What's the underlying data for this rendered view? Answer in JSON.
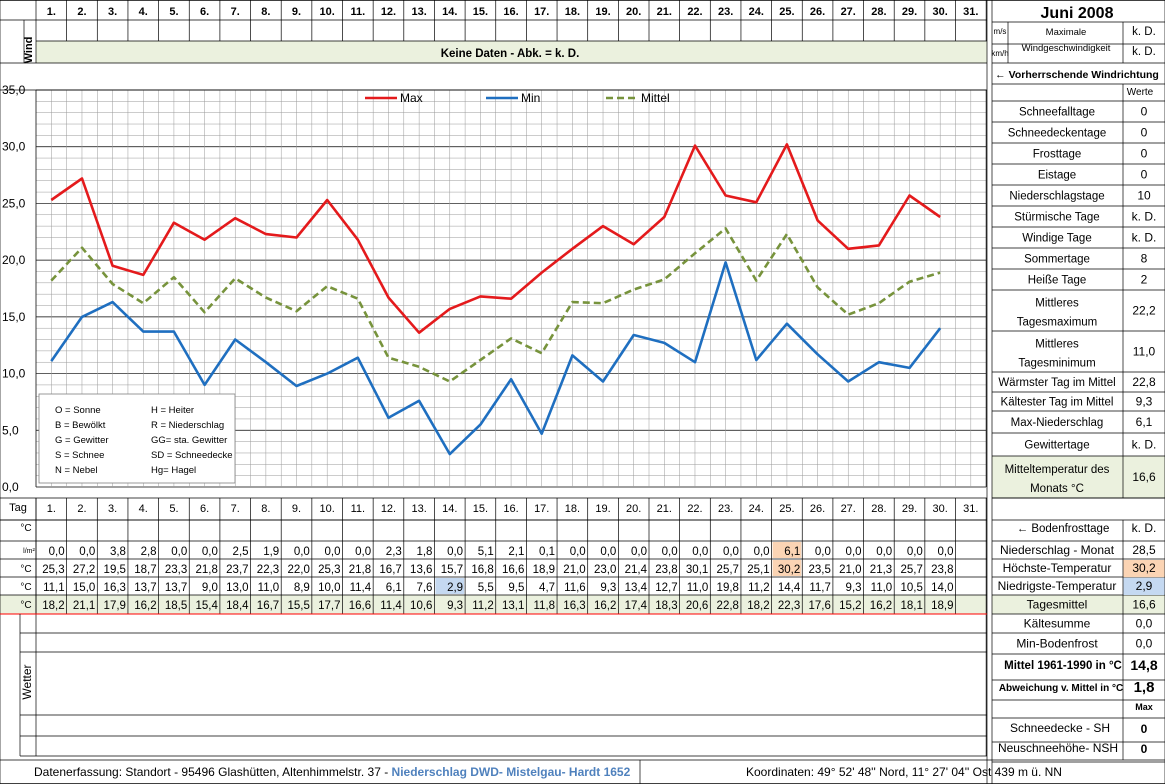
{
  "header": {
    "title": "Juni 2008",
    "day_labels": [
      "1.",
      "2.",
      "3.",
      "4.",
      "5.",
      "6.",
      "7.",
      "8.",
      "9.",
      "10.",
      "11.",
      "12.",
      "13.",
      "14.",
      "15.",
      "16.",
      "17.",
      "18.",
      "19.",
      "20.",
      "21.",
      "22.",
      "23.",
      "24.",
      "25.",
      "26.",
      "27.",
      "28.",
      "29.",
      "30.",
      "31."
    ]
  },
  "wind": {
    "label": "Wind",
    "no_data_text": "Keine Daten - Abk. = k. D.",
    "unit_ms": "m/s",
    "unit_kmh": "km/h",
    "max_label_line1": "Maximale",
    "max_label_line2": "Windgeschwindigkeit",
    "value_ms": "k. D.",
    "value_kmh": "k. D.",
    "direction_label": "← Vorherrschende Windrichtung"
  },
  "chart_data": {
    "type": "line",
    "title": "",
    "xlabel": "",
    "ylabel": "",
    "x": [
      1,
      2,
      3,
      4,
      5,
      6,
      7,
      8,
      9,
      10,
      11,
      12,
      13,
      14,
      15,
      16,
      17,
      18,
      19,
      20,
      21,
      22,
      23,
      24,
      25,
      26,
      27,
      28,
      29,
      30
    ],
    "ylim": [
      0,
      35
    ],
    "yticks": [
      "0,0",
      "5,0",
      "10,0",
      "15,0",
      "20,0",
      "25,0",
      "30,0",
      "35,0"
    ],
    "grid": true,
    "legend_position": "top",
    "series": [
      {
        "name": "Max",
        "color": "#e41a1c",
        "style": "solid",
        "values": [
          25.3,
          27.2,
          19.5,
          18.7,
          23.3,
          21.8,
          23.7,
          22.3,
          22.0,
          25.3,
          21.8,
          16.7,
          13.6,
          15.7,
          16.8,
          16.6,
          18.9,
          21.0,
          23.0,
          21.4,
          23.8,
          30.1,
          25.7,
          25.1,
          30.2,
          23.5,
          21.0,
          21.3,
          25.7,
          23.8
        ]
      },
      {
        "name": "Min",
        "color": "#1f6fc0",
        "style": "solid",
        "values": [
          11.1,
          15.0,
          16.3,
          13.7,
          13.7,
          9.0,
          13.0,
          11.0,
          8.9,
          10.0,
          11.4,
          6.1,
          7.6,
          2.9,
          5.5,
          9.5,
          4.7,
          11.6,
          9.3,
          13.4,
          12.7,
          11.0,
          19.8,
          11.2,
          14.4,
          11.7,
          9.3,
          11.0,
          10.5,
          14.0
        ]
      },
      {
        "name": "Mittel",
        "color": "#77933c",
        "style": "dashed",
        "values": [
          18.2,
          21.1,
          17.9,
          16.2,
          18.5,
          15.4,
          18.4,
          16.7,
          15.5,
          17.7,
          16.6,
          11.4,
          10.6,
          9.3,
          11.2,
          13.1,
          11.8,
          16.3,
          16.2,
          17.4,
          18.3,
          20.6,
          22.8,
          18.2,
          22.3,
          17.6,
          15.2,
          16.2,
          18.1,
          18.9
        ]
      }
    ],
    "annotation_legend": [
      [
        "O = Sonne",
        "H = Heiter"
      ],
      [
        "B = Bewölkt",
        "R = Niederschlag"
      ],
      [
        "G = Gewitter",
        "GG= sta. Gewitter"
      ],
      [
        "S = Schnee",
        "SD = Schneedecke"
      ],
      [
        "N = Nebel",
        "Hg= Hagel"
      ]
    ]
  },
  "stats": {
    "header": "Werte",
    "rows": [
      {
        "label": "Schneefalltage",
        "value": "0"
      },
      {
        "label": "Schneedeckentage",
        "value": "0"
      },
      {
        "label": "Frosttage",
        "value": "0"
      },
      {
        "label": "Eistage",
        "value": "0"
      },
      {
        "label": "Niederschlagstage",
        "value": "10"
      },
      {
        "label": "Stürmische Tage",
        "value": "k. D."
      },
      {
        "label": "Windige Tage",
        "value": "k. D."
      },
      {
        "label": "Sommertage",
        "value": "8"
      },
      {
        "label": "Heiße Tage",
        "value": "2"
      },
      {
        "label": "Mittleres Tagesmaximum",
        "value": "22,2"
      },
      {
        "label": "Mittleres Tagesminimum",
        "value": "11,0"
      },
      {
        "label": "Wärmster Tag im Mittel",
        "value": "22,8"
      },
      {
        "label": "Kältester Tag im Mittel",
        "value": "9,3"
      },
      {
        "label": "Max-Niederschlag",
        "value": "6,1"
      },
      {
        "label": "Gewittertage",
        "value": "k. D."
      },
      {
        "label": "Mitteltemperatur des Monats °C",
        "value": "16,6"
      }
    ]
  },
  "table": {
    "tag_label": "Tag",
    "unit_c": "°C",
    "unit_rain": "l/m²",
    "rain": [
      "0,0",
      "0,0",
      "3,8",
      "2,8",
      "0,0",
      "0,0",
      "2,5",
      "1,9",
      "0,0",
      "0,0",
      "0,0",
      "2,3",
      "1,8",
      "0,0",
      "5,1",
      "2,1",
      "0,1",
      "0,0",
      "0,0",
      "0,0",
      "0,0",
      "0,0",
      "0,0",
      "0,0",
      "6,1",
      "0,0",
      "0,0",
      "0,0",
      "0,0",
      "0,0"
    ],
    "max": [
      "25,3",
      "27,2",
      "19,5",
      "18,7",
      "23,3",
      "21,8",
      "23,7",
      "22,3",
      "22,0",
      "25,3",
      "21,8",
      "16,7",
      "13,6",
      "15,7",
      "16,8",
      "16,6",
      "18,9",
      "21,0",
      "23,0",
      "21,4",
      "23,8",
      "30,1",
      "25,7",
      "25,1",
      "30,2",
      "23,5",
      "21,0",
      "21,3",
      "25,7",
      "23,8"
    ],
    "min": [
      "11,1",
      "15,0",
      "16,3",
      "13,7",
      "13,7",
      "9,0",
      "13,0",
      "11,0",
      "8,9",
      "10,0",
      "11,4",
      "6,1",
      "7,6",
      "2,9",
      "5,5",
      "9,5",
      "4,7",
      "11,6",
      "9,3",
      "13,4",
      "12,7",
      "11,0",
      "19,8",
      "11,2",
      "14,4",
      "11,7",
      "9,3",
      "11,0",
      "10,5",
      "14,0"
    ],
    "mean": [
      "18,2",
      "21,1",
      "17,9",
      "16,2",
      "18,5",
      "15,4",
      "18,4",
      "16,7",
      "15,5",
      "17,7",
      "16,6",
      "11,4",
      "10,6",
      "9,3",
      "11,2",
      "13,1",
      "11,8",
      "16,3",
      "16,2",
      "17,4",
      "18,3",
      "20,6",
      "22,8",
      "18,2",
      "22,3",
      "17,6",
      "15,2",
      "16,2",
      "18,1",
      "18,9"
    ],
    "wetter_label": "Wetter"
  },
  "summary": {
    "bodenfrost_label": "← Bodenfrosttage",
    "bodenfrost_value": "k. D.",
    "rows": [
      {
        "label": "Niederschlag - Monat",
        "value": "28,5"
      },
      {
        "label": "Höchste-Temperatur",
        "value": "30,2"
      },
      {
        "label": "Niedrigste-Temperatur",
        "value": "2,9"
      },
      {
        "label": "Tagesmittel",
        "value": "16,6"
      },
      {
        "label": "Kältesumme",
        "value": "0,0"
      },
      {
        "label": "Min-Bodenfrost",
        "value": "0,0"
      }
    ],
    "mittel_label": "Mittel 1961-1990 in °C",
    "mittel_value": "14,8",
    "abweichung_label": "Abweichung v. Mittel in °C",
    "abweichung_value": "1,8",
    "max_label": "Max",
    "snow_depth_label": "Schneedecke -  SH",
    "snow_depth_value": "0",
    "new_snow_label": "Neuschneehöhe- NSH",
    "new_snow_value": "0"
  },
  "footer": {
    "erfassung": "Datenerfassung:  Standort -  95496  Glashütten, Altenhimmelstr. 37 -",
    "niederschlag": "Niederschlag DWD- Mistelgau- Hardt 1652",
    "koordinaten": "Koordinaten:  49° 52' 48'' Nord,    11° 27' 04'' Ost   439 m ü. NN"
  },
  "colors": {
    "green_band": "#ebf1de",
    "highlight_orange": "#fbd4b4",
    "highlight_blue": "#c5d9f1",
    "link_blue": "#4f81bd",
    "alert_red": "#ff0000",
    "grid_line": "#bfbfbf"
  }
}
